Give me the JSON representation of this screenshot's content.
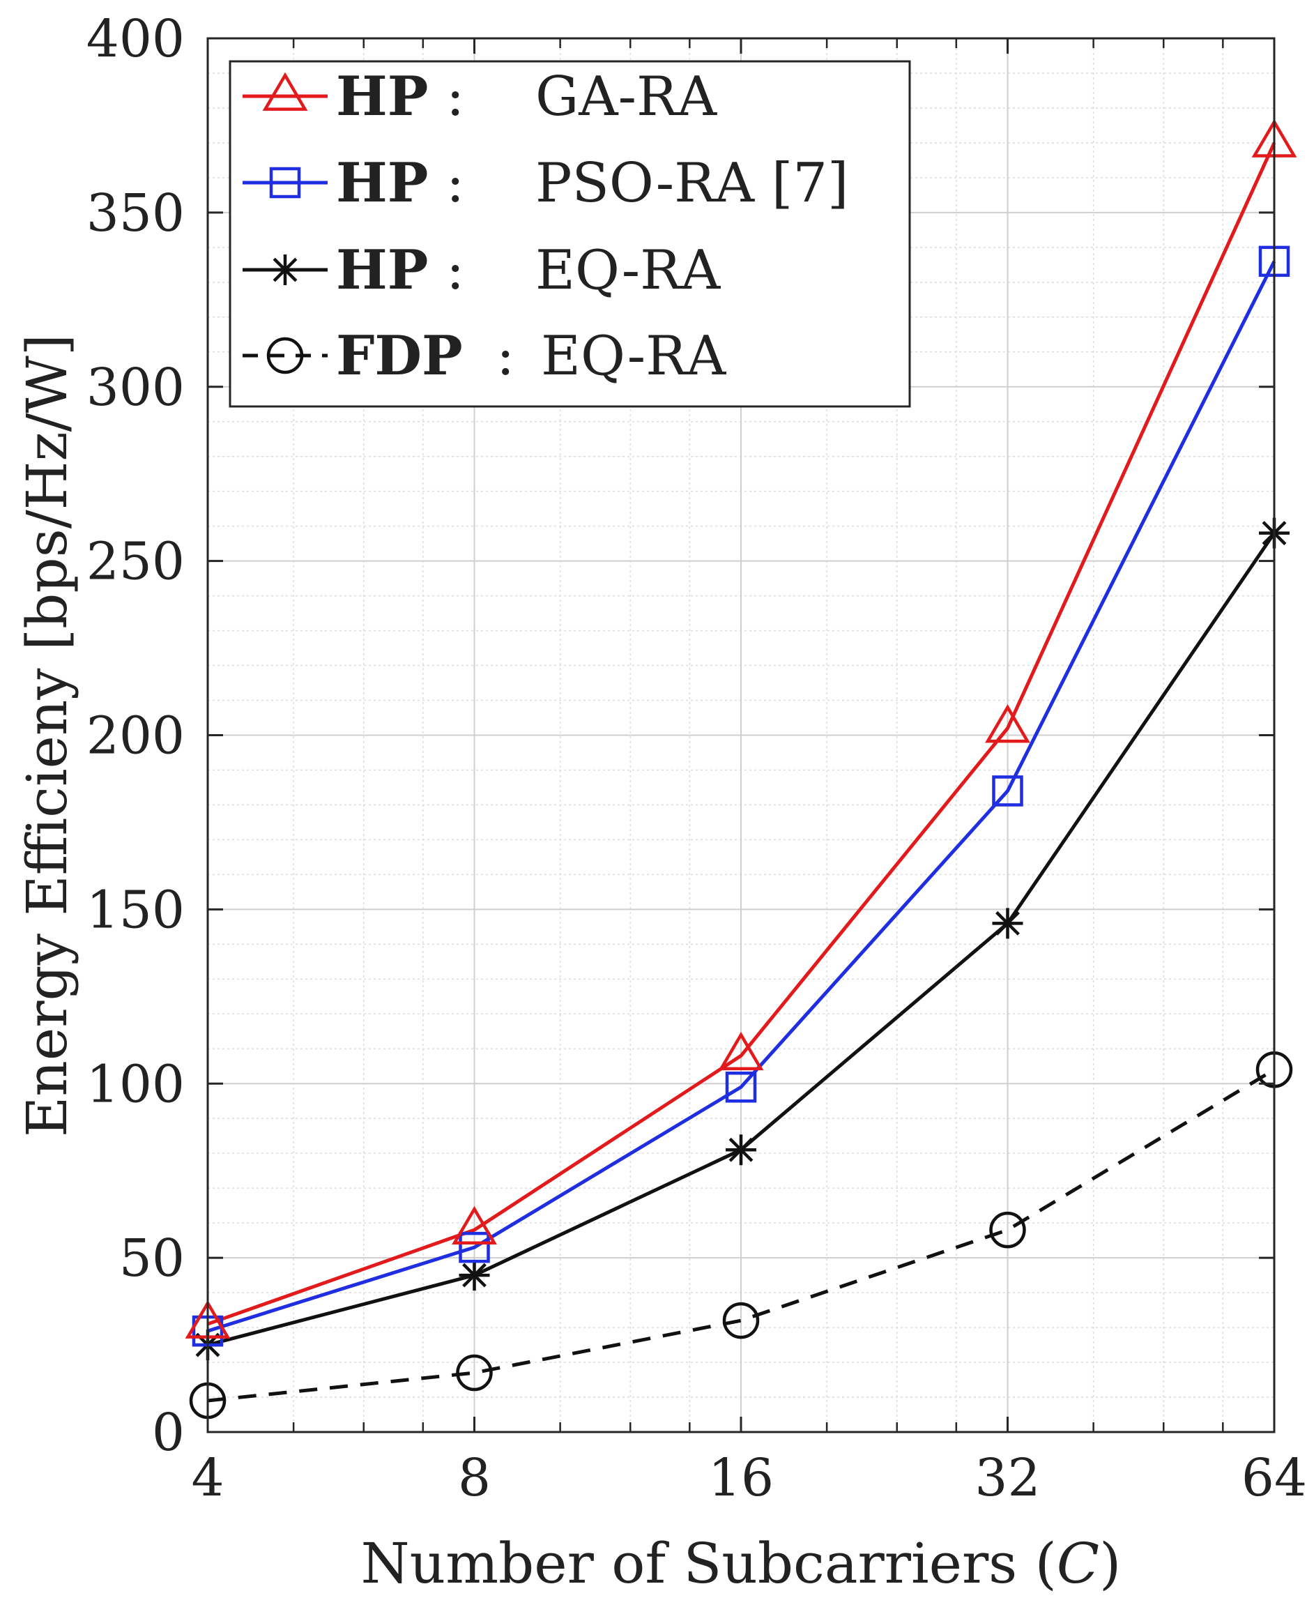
{
  "chart_data": {
    "type": "line",
    "title": "",
    "xlabel": "Number of Subcarriers (",
    "xlabel_var": "C",
    "xlabel_close": ")",
    "ylabel": "Energy Efficieny [bps/Hz/W]",
    "xscale": "log2",
    "xlim": [
      4,
      64
    ],
    "ylim": [
      0,
      400
    ],
    "x": [
      4,
      8,
      16,
      32,
      64
    ],
    "x_tick_labels": [
      "4",
      "8",
      "16",
      "32",
      "64"
    ],
    "y_ticks": [
      0,
      50,
      100,
      150,
      200,
      250,
      300,
      350,
      400
    ],
    "y_tick_labels": [
      "0",
      "50",
      "100",
      "150",
      "200",
      "250",
      "300",
      "350",
      "400"
    ],
    "grid": true,
    "legend_position": "top-left",
    "series": [
      {
        "name": "GA-RA",
        "prefix": "HP",
        "sep": ":",
        "color": "#e31a1c",
        "marker": "triangle",
        "dash": "solid",
        "values": [
          31,
          58,
          108,
          202,
          370
        ]
      },
      {
        "name": "PSO-RA [7]",
        "prefix": "HP",
        "sep": ":",
        "color": "#1f2ee0",
        "marker": "square",
        "dash": "solid",
        "values": [
          29,
          53,
          99,
          184,
          336
        ]
      },
      {
        "name": "EQ-RA",
        "prefix": "HP",
        "sep": ":",
        "color": "#111111",
        "marker": "asterisk",
        "dash": "solid",
        "values": [
          25,
          45,
          81,
          146,
          258
        ]
      },
      {
        "name": "EQ-RA",
        "prefix": "FDP",
        "sep": ":",
        "color": "#111111",
        "marker": "circle",
        "dash": "dashed",
        "values": [
          9,
          17,
          32,
          58,
          104
        ]
      }
    ]
  }
}
